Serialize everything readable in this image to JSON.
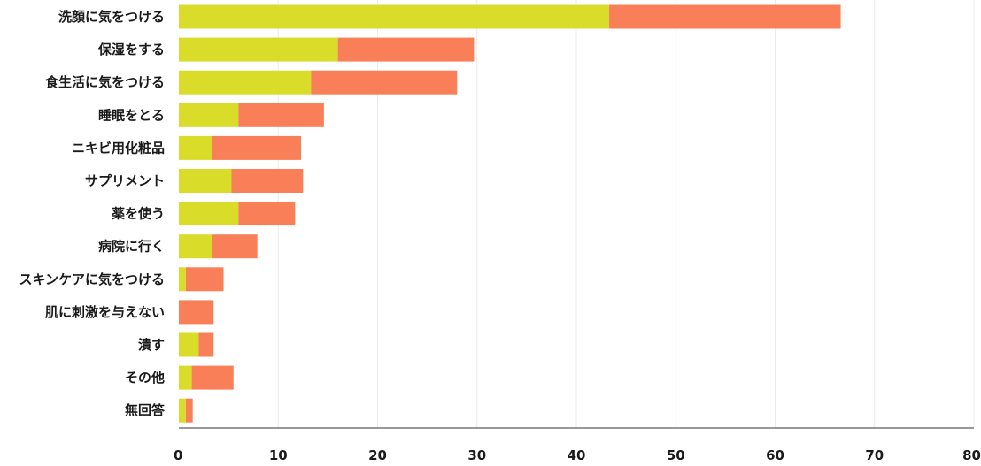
{
  "chart_data": {
    "type": "bar",
    "orientation": "horizontal",
    "stacked": true,
    "categories": [
      "洗顔に気をつける",
      "保湿をする",
      "食生活に気をつける",
      "睡眠をとる",
      "ニキビ用化粧品",
      "サプリメント",
      "薬を使う",
      "病院に行く",
      "スキンケアに気をつける",
      "肌に刺激を与えない",
      "潰す",
      "その他",
      "無回答"
    ],
    "series": [
      {
        "color": "#dadc2a",
        "values": [
          43.3,
          16.0,
          13.3,
          6.0,
          3.3,
          5.3,
          6.0,
          3.3,
          0.7,
          0.0,
          2.0,
          1.3,
          0.7
        ]
      },
      {
        "color": "#f97f59",
        "values": [
          23.3,
          13.7,
          14.7,
          8.6,
          9.0,
          7.2,
          5.7,
          4.6,
          3.8,
          3.5,
          1.5,
          4.2,
          0.7
        ]
      }
    ],
    "xlim": [
      0,
      80
    ],
    "xticks": [
      "0",
      "10",
      "20",
      "30",
      "40",
      "50",
      "60",
      "70",
      "80"
    ],
    "grid": true,
    "legend": "none"
  }
}
